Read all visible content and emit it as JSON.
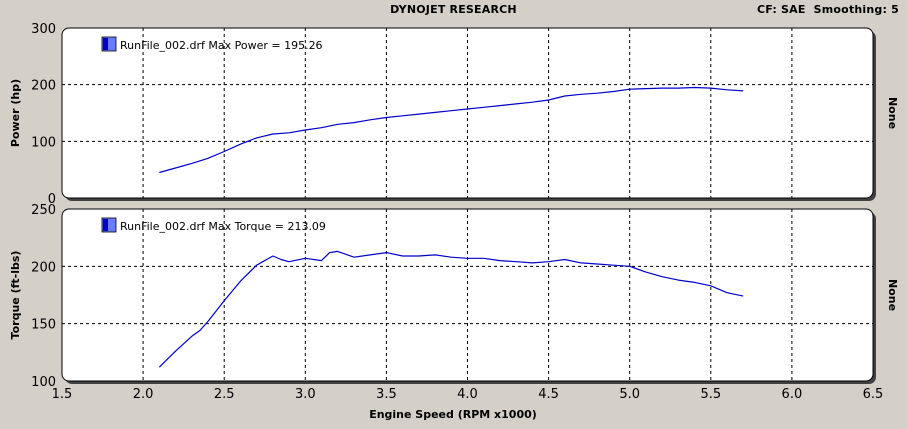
{
  "header": {
    "title": "DYNOJET RESEARCH",
    "cf_label": "CF: SAE",
    "smoothing_label": "Smoothing: 5"
  },
  "colors": {
    "background": "#d4d0c8",
    "plot_bg": "#ffffff",
    "trace": "#0000cc",
    "legend_swatch_dark": "#0000cc",
    "legend_swatch_light": "#6a7cff"
  },
  "chart_data": [
    {
      "type": "line",
      "ylabel": "Power (hp)",
      "right_label": "None",
      "legend": "RunFile_002.drf Max Power = 195.26",
      "ylim": [
        0,
        300
      ],
      "yticks": [
        "0",
        "100",
        "200",
        "300"
      ],
      "xlim": [
        1.5,
        6.5
      ],
      "grid": true,
      "series": [
        {
          "name": "RunFile_002.drf",
          "points": [
            [
              2.1,
              45
            ],
            [
              2.2,
              53
            ],
            [
              2.3,
              61
            ],
            [
              2.4,
              70
            ],
            [
              2.5,
              82
            ],
            [
              2.6,
              95
            ],
            [
              2.7,
              106
            ],
            [
              2.8,
              113
            ],
            [
              2.9,
              115
            ],
            [
              3.0,
              120
            ],
            [
              3.1,
              124
            ],
            [
              3.2,
              130
            ],
            [
              3.3,
              133
            ],
            [
              3.4,
              138
            ],
            [
              3.5,
              142
            ],
            [
              3.6,
              145
            ],
            [
              3.7,
              148
            ],
            [
              3.8,
              151
            ],
            [
              3.9,
              154
            ],
            [
              4.0,
              157
            ],
            [
              4.1,
              160
            ],
            [
              4.2,
              163
            ],
            [
              4.3,
              166
            ],
            [
              4.4,
              169
            ],
            [
              4.5,
              173
            ],
            [
              4.6,
              180
            ],
            [
              4.7,
              183
            ],
            [
              4.8,
              185
            ],
            [
              4.9,
              188
            ],
            [
              5.0,
              192
            ],
            [
              5.1,
              193
            ],
            [
              5.2,
              194
            ],
            [
              5.3,
              194
            ],
            [
              5.4,
              195
            ],
            [
              5.5,
              194
            ],
            [
              5.6,
              191
            ],
            [
              5.7,
              189
            ]
          ]
        }
      ]
    },
    {
      "type": "line",
      "ylabel": "Torque (ft-lbs)",
      "right_label": "None",
      "legend": "RunFile_002.drf Max Torque = 213.09",
      "ylim": [
        100,
        250
      ],
      "yticks": [
        "100",
        "150",
        "200",
        "250"
      ],
      "xlim": [
        1.5,
        6.5
      ],
      "xticks": [
        "1.5",
        "2.0",
        "2.5",
        "3.0",
        "3.5",
        "4.0",
        "4.5",
        "5.0",
        "5.5",
        "6.0",
        "6.5"
      ],
      "xlabel": "Engine Speed (RPM x1000)",
      "grid": true,
      "series": [
        {
          "name": "RunFile_002.drf",
          "points": [
            [
              2.1,
              112
            ],
            [
              2.2,
              126
            ],
            [
              2.3,
              139
            ],
            [
              2.35,
              144
            ],
            [
              2.4,
              152
            ],
            [
              2.5,
              170
            ],
            [
              2.6,
              187
            ],
            [
              2.7,
              201
            ],
            [
              2.8,
              209
            ],
            [
              2.85,
              206
            ],
            [
              2.9,
              204
            ],
            [
              3.0,
              207
            ],
            [
              3.1,
              205
            ],
            [
              3.15,
              212
            ],
            [
              3.2,
              213
            ],
            [
              3.3,
              208
            ],
            [
              3.4,
              210
            ],
            [
              3.5,
              212
            ],
            [
              3.6,
              209
            ],
            [
              3.7,
              209
            ],
            [
              3.8,
              210
            ],
            [
              3.9,
              208
            ],
            [
              4.0,
              207
            ],
            [
              4.1,
              207
            ],
            [
              4.2,
              205
            ],
            [
              4.3,
              204
            ],
            [
              4.4,
              203
            ],
            [
              4.5,
              204
            ],
            [
              4.6,
              206
            ],
            [
              4.7,
              203
            ],
            [
              4.8,
              202
            ],
            [
              4.9,
              201
            ],
            [
              5.0,
              200
            ],
            [
              5.1,
              195
            ],
            [
              5.2,
              191
            ],
            [
              5.3,
              188
            ],
            [
              5.4,
              186
            ],
            [
              5.5,
              183
            ],
            [
              5.6,
              177
            ],
            [
              5.7,
              174
            ]
          ]
        }
      ]
    }
  ]
}
